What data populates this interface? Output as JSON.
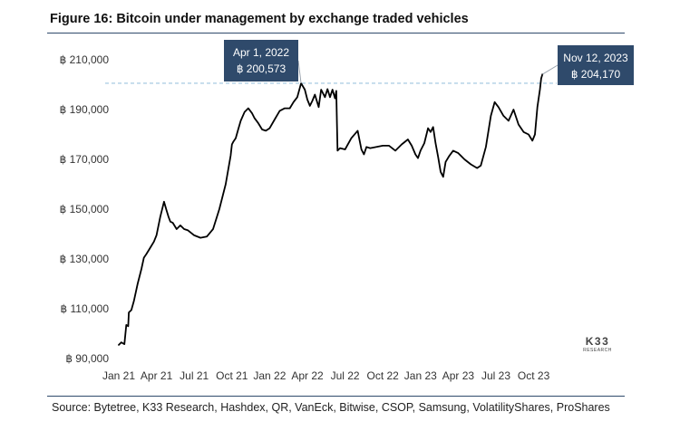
{
  "title": "Figure 16: Bitcoin under management by exchange traded vehicles",
  "source": "Source: Bytetree, K33 Research, Hashdex, QR, VanEck, Bitwise, CSOP, Samsung, VolatilityShares, ProShares",
  "logo": {
    "main": "K33",
    "sub": "RESEARCH"
  },
  "colors": {
    "line": "#000000",
    "callout_bg": "#2f4a6b",
    "dashed_ref": "#9cc3df",
    "rule": "#2f4a6b"
  },
  "chart_data": {
    "type": "line",
    "title": "Figure 16: Bitcoin under management by exchange traded vehicles",
    "xlabel": "",
    "ylabel": "",
    "x_unit": "months since Jan 2021",
    "xlim": [
      0,
      34.4
    ],
    "ylim": [
      90000,
      212000
    ],
    "y_ticks": [
      90000,
      110000,
      130000,
      150000,
      170000,
      190000,
      210000
    ],
    "y_tick_labels": [
      "฿ 90,000",
      "฿ 110,000",
      "฿ 130,000",
      "฿ 150,000",
      "฿ 170,000",
      "฿ 190,000",
      "฿ 210,000"
    ],
    "x_ticks": [
      0,
      3,
      6,
      9,
      12,
      15,
      18,
      21,
      24,
      27,
      30,
      33
    ],
    "x_tick_labels": [
      "Jan 21",
      "Apr 21",
      "Jul 21",
      "Oct 21",
      "Jan 22",
      "Apr 22",
      "Jul 22",
      "Oct 22",
      "Jan 23",
      "Apr 23",
      "Jul 23",
      "Oct 23"
    ],
    "series": [
      {
        "name": "Bitcoin under management",
        "x": [
          0,
          0.2,
          0.45,
          0.6,
          0.75,
          0.8,
          1.0,
          1.2,
          1.5,
          1.8,
          2.0,
          2.2,
          2.5,
          2.8,
          3.0,
          3.3,
          3.6,
          3.8,
          3.95,
          4.1,
          4.3,
          4.6,
          4.9,
          5.2,
          5.5,
          6.0,
          6.5,
          7.0,
          7.5,
          8.0,
          8.5,
          8.9,
          9.0,
          9.1,
          9.3,
          9.5,
          9.7,
          10.0,
          10.3,
          10.6,
          10.8,
          11.1,
          11.4,
          11.7,
          12.0,
          12.4,
          12.8,
          13.2,
          13.6,
          13.9,
          14.2,
          14.5,
          14.8,
          15.0,
          15.2,
          15.4,
          15.6,
          15.9,
          16.1,
          16.4,
          16.6,
          16.8,
          17.0,
          17.2,
          17.3,
          17.35,
          17.4,
          17.6,
          18.0,
          18.5,
          19.0,
          19.3,
          19.5,
          19.7,
          20.0,
          20.5,
          21.0,
          21.5,
          22.0,
          22.5,
          23.0,
          23.3,
          23.6,
          23.8,
          24.0,
          24.3,
          24.6,
          24.8,
          25.0,
          25.2,
          25.4,
          25.6,
          25.8,
          26.0,
          26.3,
          26.6,
          27.0,
          27.5,
          28.0,
          28.5,
          28.8,
          29.2,
          29.6,
          29.9,
          30.2,
          30.6,
          31.0,
          31.4,
          31.8,
          32.2,
          32.6,
          32.9,
          33.1,
          33.3,
          33.5,
          33.6,
          33.7
        ],
        "y": [
          95500,
          96500,
          95800,
          103500,
          103000,
          108500,
          109500,
          113000,
          120000,
          126000,
          130500,
          132000,
          134500,
          137000,
          139500,
          147000,
          153000,
          149500,
          147000,
          145000,
          144500,
          142000,
          143500,
          142000,
          141500,
          139500,
          138500,
          139000,
          142000,
          150000,
          160000,
          171500,
          176000,
          177000,
          178500,
          182000,
          185500,
          189000,
          190500,
          188500,
          186500,
          184500,
          182000,
          181500,
          182500,
          186000,
          189500,
          190500,
          190500,
          193000,
          195000,
          200573,
          198000,
          194000,
          191500,
          193500,
          196000,
          191000,
          198000,
          195000,
          198200,
          195000,
          198000,
          194500,
          197500,
          185000,
          173500,
          174500,
          174000,
          178500,
          181500,
          174000,
          172000,
          175000,
          174500,
          175000,
          175500,
          175500,
          173500,
          176000,
          178000,
          175500,
          172000,
          170500,
          173500,
          176500,
          182500,
          181000,
          183000,
          176500,
          171000,
          165000,
          163000,
          169000,
          171500,
          173500,
          172500,
          170000,
          168000,
          166500,
          167500,
          175000,
          187500,
          193000,
          191000,
          187500,
          185500,
          190000,
          184000,
          181000,
          180000,
          177500,
          180000,
          191000,
          198000,
          202500,
          204170
        ]
      }
    ],
    "annotations": [
      {
        "date": "Apr 1, 2022",
        "value": "฿ 200,573",
        "x": 14.5,
        "y": 200573
      },
      {
        "date": "Nov 12, 2023",
        "value": "฿ 204,170",
        "x": 33.7,
        "y": 204170
      }
    ],
    "reference_line": {
      "style": "dashed",
      "y": 200573
    },
    "grid": false,
    "legend": "none"
  }
}
